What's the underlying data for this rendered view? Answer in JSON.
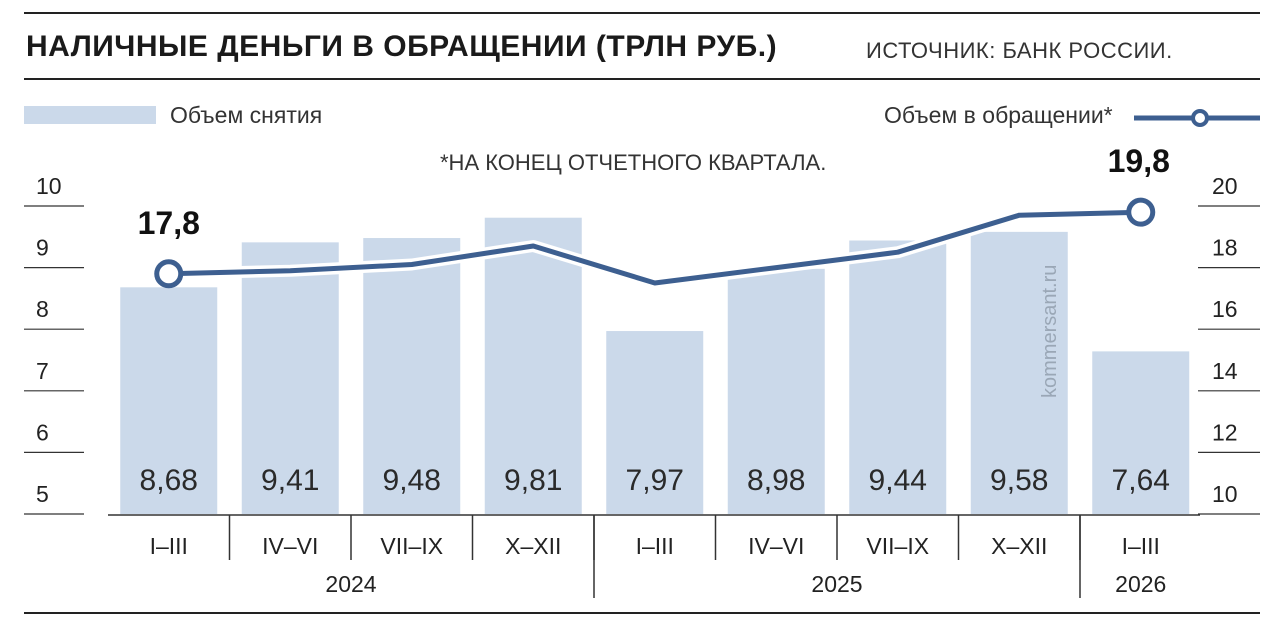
{
  "header": {
    "title": "НАЛИЧНЫЕ ДЕНЬГИ В ОБРАЩЕНИИ (ТРЛН РУБ.)",
    "source": "ИСТОЧНИК: БАНК РОССИИ."
  },
  "legend": {
    "bar_label": "Объем снятия",
    "line_label": "Объем в обращении*"
  },
  "note": "*НА КОНЕЦ ОТЧЕТНОГО КВАРТАЛА.",
  "watermark": "kommersant.ru",
  "colors": {
    "bar": "#cbd9ea",
    "line": "#3d5f90",
    "text": "#1a1a1a"
  },
  "chart_data": {
    "type": "bar",
    "categories": [
      "I–III",
      "IV–VI",
      "VII–IX",
      "X–XII",
      "I–III",
      "IV–VI",
      "VII–IX",
      "X–XII",
      "I–III"
    ],
    "groups": [
      {
        "label": "2024",
        "count": 4
      },
      {
        "label": "2025",
        "count": 4
      },
      {
        "label": "2026",
        "count": 1
      }
    ],
    "series": [
      {
        "name": "Объем снятия",
        "type": "bar",
        "axis": "left",
        "values": [
          8.68,
          9.41,
          9.48,
          9.81,
          7.97,
          8.98,
          9.44,
          9.58,
          7.64
        ],
        "value_labels": [
          "8,68",
          "9,41",
          "9,48",
          "9,81",
          "7,97",
          "8,98",
          "9,44",
          "9,58",
          "7,64"
        ]
      },
      {
        "name": "Объем в обращении*",
        "type": "line",
        "axis": "right",
        "values": [
          17.8,
          17.9,
          18.1,
          18.7,
          17.5,
          18.0,
          18.5,
          19.7,
          19.8
        ],
        "value_labels": [
          "17,8",
          "",
          "",
          "",
          "",
          "",
          "",
          "",
          "19,8"
        ]
      }
    ],
    "y_left": {
      "ylim": [
        5,
        10
      ],
      "ticks": [
        5,
        6,
        7,
        8,
        9,
        10
      ],
      "tick_labels": [
        "5",
        "6",
        "7",
        "8",
        "9",
        "10"
      ]
    },
    "y_right": {
      "ylim": [
        10,
        20
      ],
      "ticks": [
        10,
        12,
        14,
        16,
        18,
        20
      ],
      "tick_labels": [
        "10",
        "12",
        "14",
        "16",
        "18",
        "20"
      ]
    },
    "grid": false
  }
}
